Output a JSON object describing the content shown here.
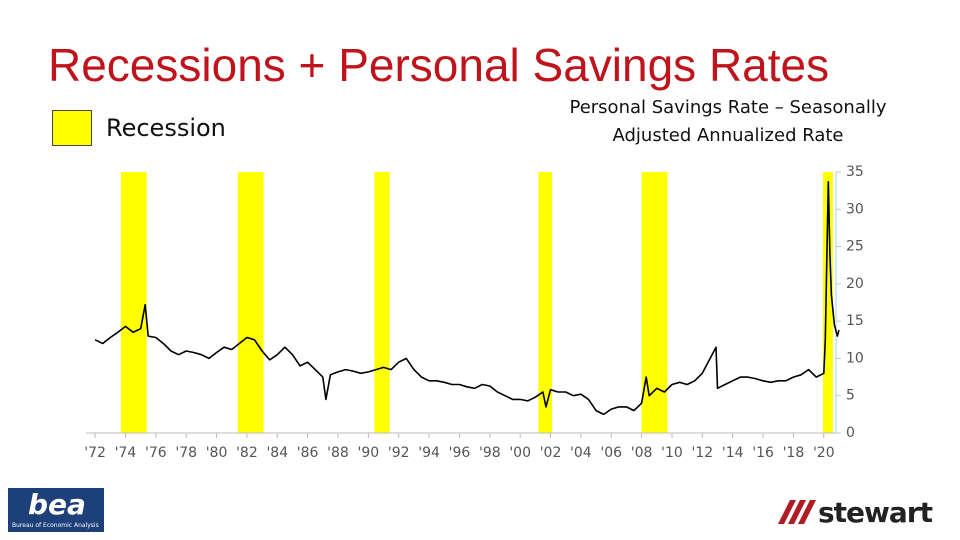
{
  "chart_data": {
    "type": "line",
    "title": "Recessions + Personal Savings Rates",
    "subtitle": "Personal Savings Rate – Seasonally Adjusted Annualized Rate",
    "recession_legend": "Recession",
    "recession_color": "#ffff00",
    "recessions": [
      [
        1973.7,
        1975.4
      ],
      [
        1981.4,
        1983.1
      ],
      [
        1990.4,
        1991.4
      ],
      [
        2001.2,
        2002.1
      ],
      [
        2008.0,
        2009.7
      ],
      [
        2019.95,
        2020.6
      ]
    ],
    "x": [
      1972,
      1972.5,
      1973,
      1973.5,
      1974,
      1974.5,
      1975,
      1975.3,
      1975.5,
      1976,
      1976.5,
      1977,
      1977.5,
      1978,
      1978.5,
      1979,
      1979.5,
      1980,
      1980.5,
      1981,
      1981.5,
      1982,
      1982.5,
      1983,
      1983.5,
      1984,
      1984.5,
      1985,
      1985.5,
      1986,
      1986.5,
      1987,
      1987.2,
      1987.5,
      1988,
      1988.5,
      1989,
      1989.5,
      1990,
      1990.5,
      1991,
      1991.5,
      1992,
      1992.5,
      1993,
      1993.5,
      1994,
      1994.5,
      1995,
      1995.5,
      1996,
      1996.5,
      1997,
      1997.5,
      1998,
      1998.5,
      1999,
      1999.5,
      2000,
      2000.5,
      2001,
      2001.5,
      2001.7,
      2002,
      2002.5,
      2003,
      2003.5,
      2004,
      2004.5,
      2005,
      2005.5,
      2006,
      2006.5,
      2007,
      2007.5,
      2008,
      2008.3,
      2008.5,
      2009,
      2009.5,
      2010,
      2010.5,
      2011,
      2011.5,
      2012,
      2012.9,
      2013,
      2013.5,
      2014,
      2014.5,
      2015,
      2015.5,
      2016,
      2016.5,
      2017,
      2017.5,
      2018,
      2018.5,
      2019,
      2019.5,
      2020,
      2020.1,
      2020.3,
      2020.4,
      2020.5,
      2020.7,
      2020.9,
      2021
    ],
    "series": [
      {
        "color": "#000000",
        "values": [
          12.5,
          12.0,
          12.8,
          13.5,
          14.3,
          13.5,
          14.0,
          17.2,
          13.0,
          12.8,
          12.0,
          11.0,
          10.5,
          11.0,
          10.8,
          10.5,
          10.0,
          10.8,
          11.5,
          11.2,
          12.0,
          12.8,
          12.5,
          11.0,
          9.8,
          10.5,
          11.5,
          10.5,
          9.0,
          9.5,
          8.5,
          7.5,
          4.5,
          7.8,
          8.2,
          8.5,
          8.3,
          8.0,
          8.2,
          8.5,
          8.8,
          8.5,
          9.5,
          10.0,
          8.5,
          7.5,
          7.0,
          7.0,
          6.8,
          6.5,
          6.5,
          6.2,
          6.0,
          6.5,
          6.3,
          5.5,
          5.0,
          4.5,
          4.5,
          4.3,
          4.8,
          5.5,
          3.5,
          5.8,
          5.5,
          5.5,
          5.0,
          5.2,
          4.5,
          3.0,
          2.5,
          3.2,
          3.5,
          3.5,
          3.0,
          4.0,
          7.5,
          5.0,
          6.0,
          5.5,
          6.5,
          6.8,
          6.5,
          7.0,
          8.0,
          11.5,
          6.0,
          6.5,
          7.0,
          7.5,
          7.5,
          7.3,
          7.0,
          6.8,
          7.0,
          7.0,
          7.5,
          7.8,
          8.5,
          7.5,
          8.0,
          12.5,
          33.7,
          24.0,
          18.5,
          14.5,
          13.0,
          13.8
        ]
      }
    ],
    "xlim": [
      1971.4,
      2021.2
    ],
    "xticks": [
      {
        "value": 1972,
        "label": "'72"
      },
      {
        "value": 1974,
        "label": "'74"
      },
      {
        "value": 1976,
        "label": "'76"
      },
      {
        "value": 1978,
        "label": "'78"
      },
      {
        "value": 1980,
        "label": "'80"
      },
      {
        "value": 1982,
        "label": "'82"
      },
      {
        "value": 1984,
        "label": "'84"
      },
      {
        "value": 1986,
        "label": "'86"
      },
      {
        "value": 1988,
        "label": "'88"
      },
      {
        "value": 1990,
        "label": "'90"
      },
      {
        "value": 1992,
        "label": "'92"
      },
      {
        "value": 1994,
        "label": "'94"
      },
      {
        "value": 1996,
        "label": "'96"
      },
      {
        "value": 1998,
        "label": "'98"
      },
      {
        "value": 2000,
        "label": "'00"
      },
      {
        "value": 2002,
        "label": "'02"
      },
      {
        "value": 2004,
        "label": "'04"
      },
      {
        "value": 2006,
        "label": "'06"
      },
      {
        "value": 2008,
        "label": "'08"
      },
      {
        "value": 2010,
        "label": "'10"
      },
      {
        "value": 2012,
        "label": "'12"
      },
      {
        "value": 2014,
        "label": "'14"
      },
      {
        "value": 2016,
        "label": "'16"
      },
      {
        "value": 2018,
        "label": "'18"
      },
      {
        "value": 2020,
        "label": "'20"
      }
    ],
    "ylim": [
      0,
      35
    ],
    "yticks": [
      0,
      5,
      10,
      15,
      20,
      25,
      30,
      35
    ],
    "logos": {
      "left": "bea",
      "left_caption": "Bureau of Economic Analysis",
      "right": "stewart"
    }
  }
}
